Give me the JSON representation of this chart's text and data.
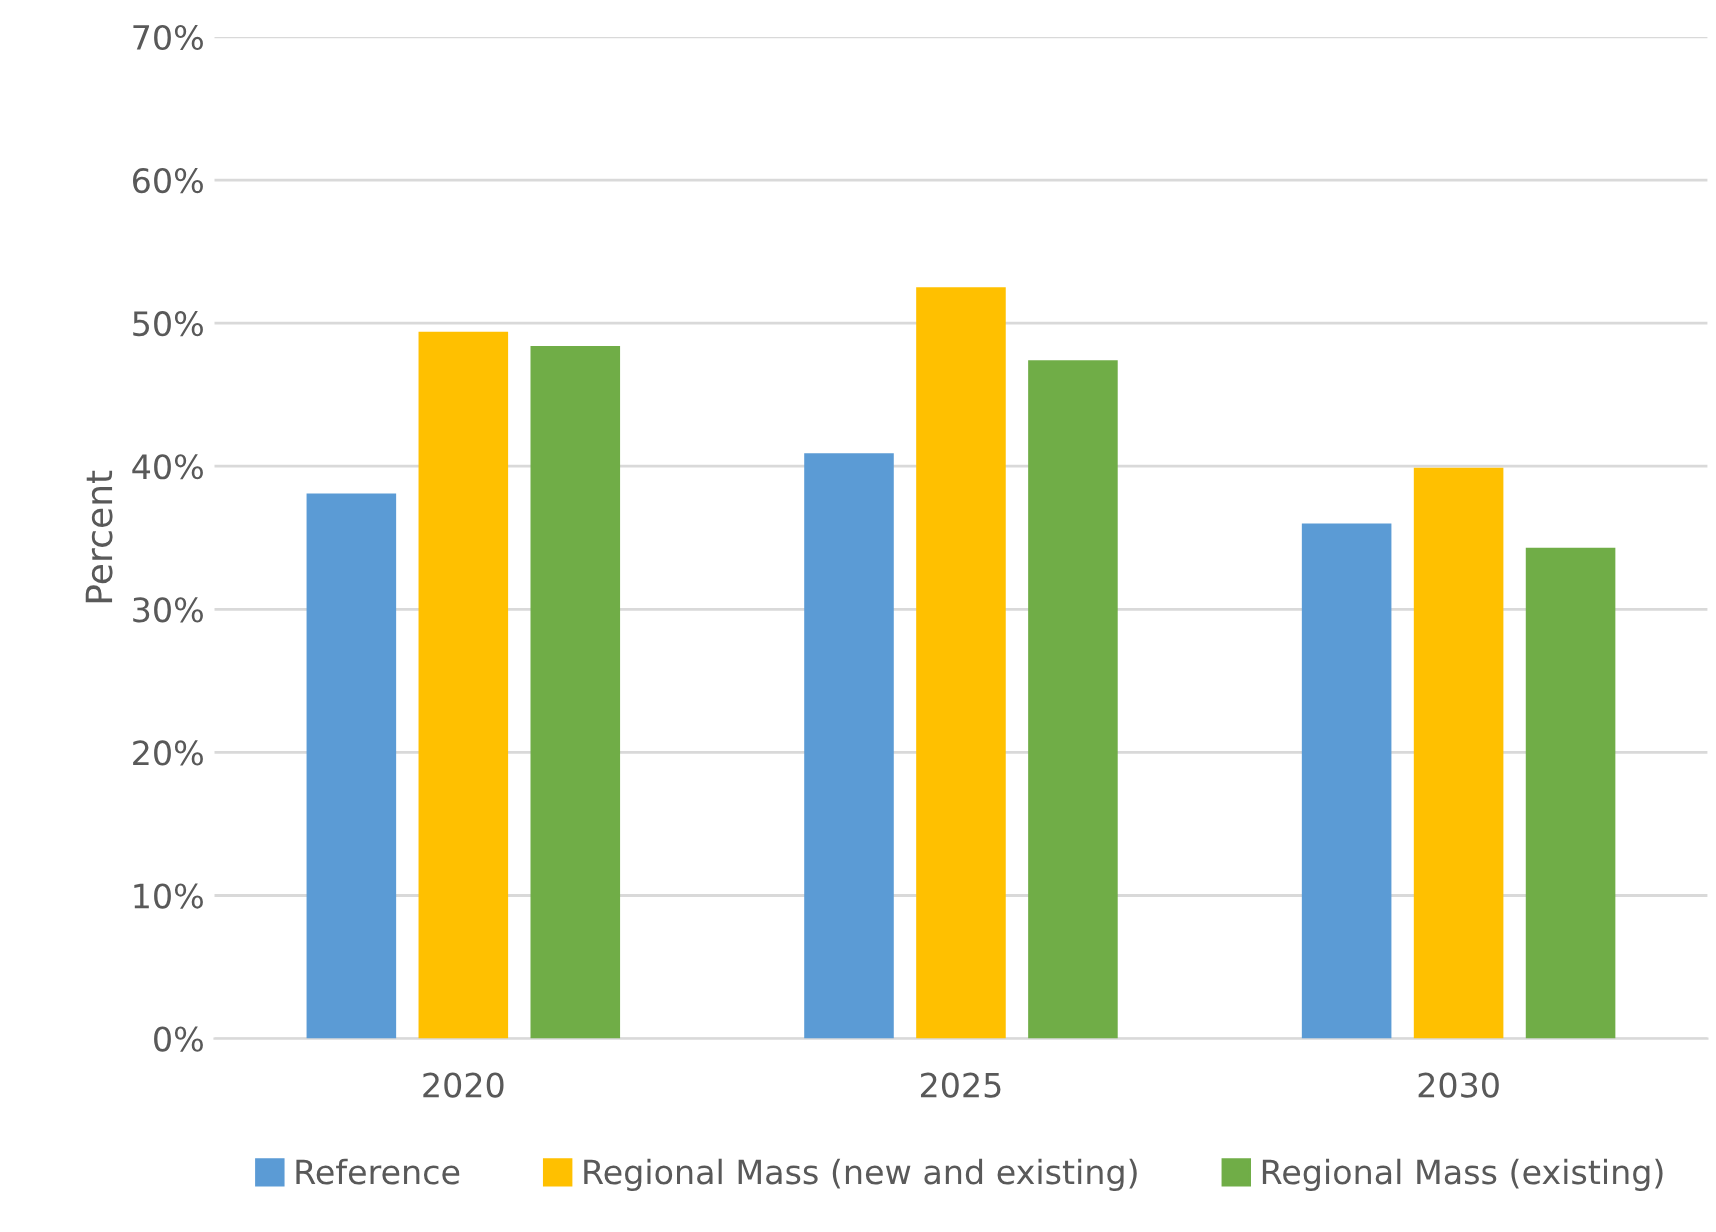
{
  "chart_data": {
    "type": "bar",
    "ylabel": "Percent",
    "categories": [
      "2020",
      "2025",
      "2030"
    ],
    "series": [
      {
        "name": "Reference",
        "color": "#5b9bd5",
        "values": [
          38.1,
          40.9,
          36.0
        ]
      },
      {
        "name": "Regional Mass (new and existing)",
        "color": "#ffc000",
        "values": [
          49.4,
          52.5,
          39.9
        ]
      },
      {
        "name": "Regional Mass (existing)",
        "color": "#70ad47",
        "values": [
          48.4,
          47.4,
          34.3
        ]
      }
    ],
    "ylim": [
      0,
      70
    ],
    "yticks": [
      {
        "value": 0,
        "label": "0%"
      },
      {
        "value": 10,
        "label": "10%"
      },
      {
        "value": 20,
        "label": "20%"
      },
      {
        "value": 30,
        "label": "30%"
      },
      {
        "value": 40,
        "label": "40%"
      },
      {
        "value": 50,
        "label": "50%"
      },
      {
        "value": 60,
        "label": "60%"
      },
      {
        "value": 70,
        "label": "70%"
      }
    ],
    "grid": "y",
    "legend": "bottom"
  }
}
